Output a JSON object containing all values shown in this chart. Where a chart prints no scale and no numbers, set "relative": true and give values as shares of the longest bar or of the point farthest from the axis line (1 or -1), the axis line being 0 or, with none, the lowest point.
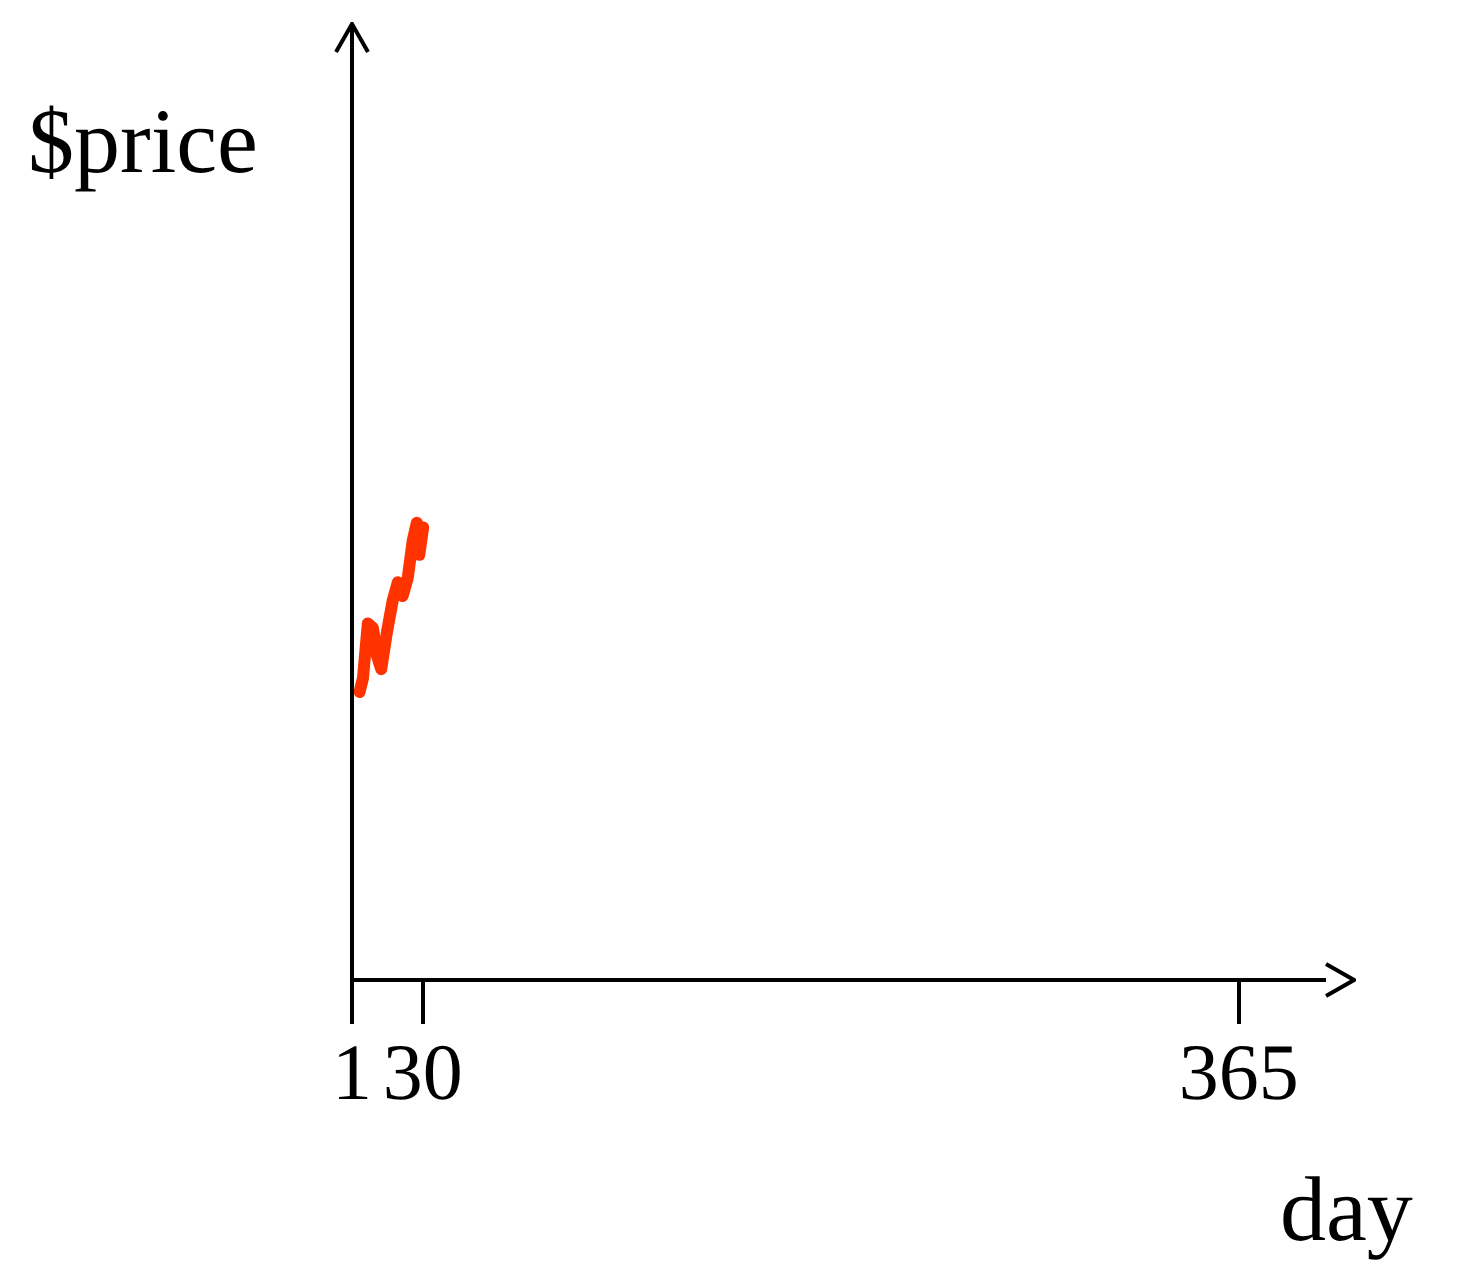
{
  "chart_data": {
    "type": "line",
    "xlabel": "day",
    "ylabel": "$price",
    "relative": true,
    "marker": "none",
    "xlim": [
      1,
      400
    ],
    "xticks": [
      1,
      30,
      365
    ],
    "x": [
      4.1,
      5.5,
      7.5,
      9.6,
      11.2,
      13,
      15.3,
      17.7,
      19.8,
      21.8,
      23.9,
      25.9,
      27.6,
      28.6,
      30.2
    ],
    "series": [
      {
        "color": "#ff3300",
        "values": [
          0.63,
          0.66,
          0.78,
          0.77,
          0.71,
          0.68,
          0.76,
          0.83,
          0.87,
          0.84,
          0.88,
          0.96,
          1,
          0.93,
          0.99
        ]
      }
    ]
  }
}
